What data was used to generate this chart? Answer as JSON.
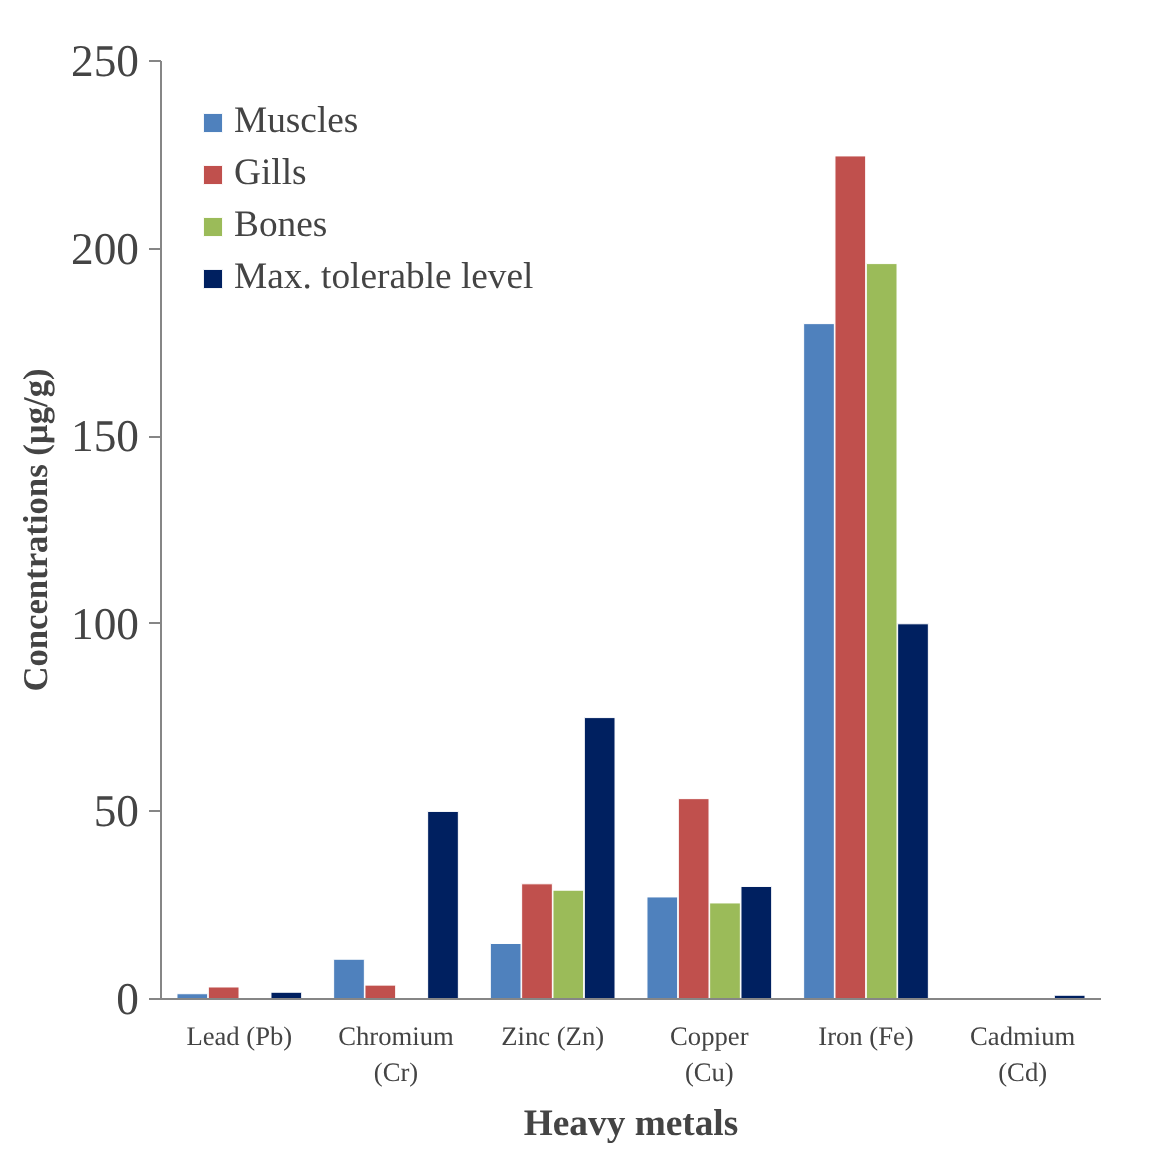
{
  "chart_data": {
    "type": "bar",
    "xlabel": "Heavy metals",
    "ylabel": "Concentrations (µg/g)",
    "categories": [
      "Lead (Pb)",
      "Chromium\n(Cr)",
      "Zinc (Zn)",
      "Copper\n(Cu)",
      "Iron (Fe)",
      "Cadmium\n(Cd)"
    ],
    "series": [
      {
        "name": "Muscles",
        "color": "#4f81bd",
        "values": [
          1.4,
          10.6,
          14.8,
          27.2,
          180,
          null
        ]
      },
      {
        "name": "Gills",
        "color": "#c0504d",
        "values": [
          3.2,
          3.7,
          30.7,
          53.4,
          224.7,
          null
        ]
      },
      {
        "name": "Bones",
        "color": "#9bbb59",
        "values": [
          null,
          null,
          29,
          25.6,
          196,
          null
        ]
      },
      {
        "name": "Max. tolerable level",
        "color": "#002060",
        "values": [
          1.8,
          50,
          75,
          30,
          100,
          1
        ]
      }
    ],
    "ylim": [
      0,
      250
    ],
    "yticks": [
      0,
      50,
      100,
      150,
      200,
      250
    ],
    "grid": false,
    "legend": "top left"
  }
}
